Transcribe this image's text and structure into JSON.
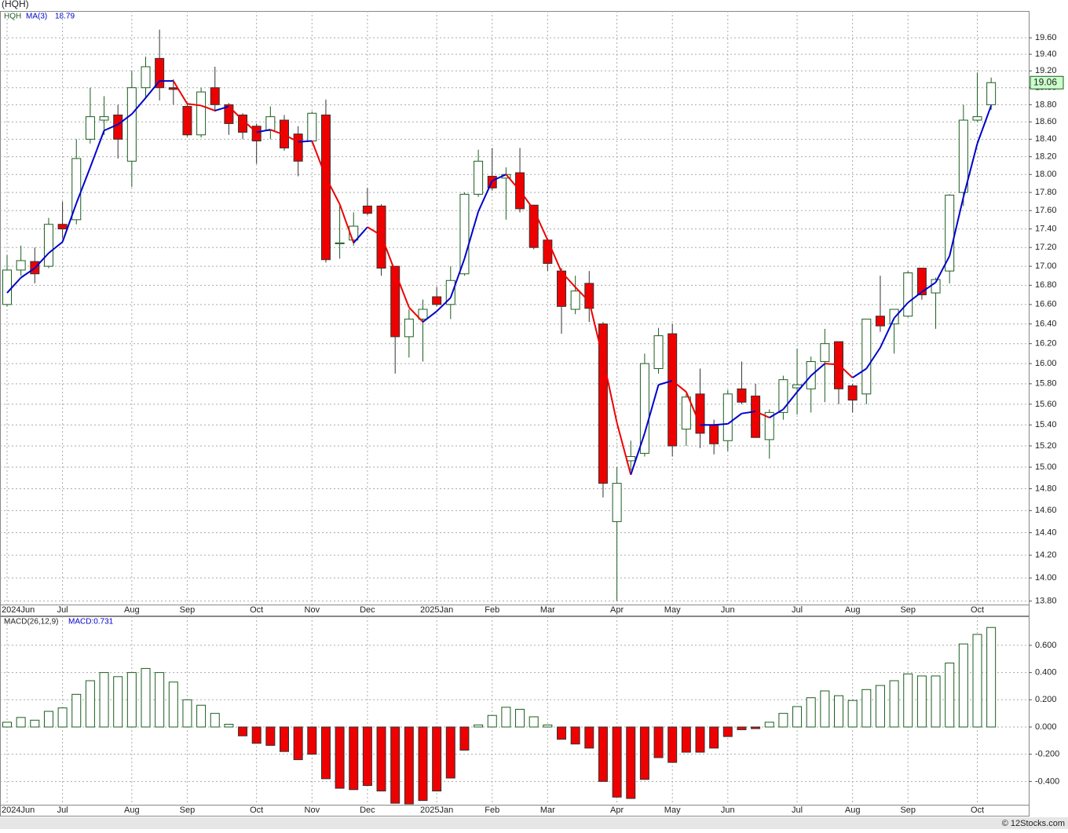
{
  "title": "(HQH)",
  "footer": "© 12Stocks.com",
  "chart_data": [
    {
      "type": "candlestick",
      "legend_name": "HQH",
      "categories": [
        "2024Jun",
        null,
        null,
        null,
        "Jul",
        null,
        null,
        null,
        null,
        "Aug",
        null,
        null,
        null,
        "Sep",
        null,
        null,
        null,
        null,
        "Oct",
        null,
        null,
        null,
        "Nov",
        null,
        null,
        null,
        "Dec",
        null,
        null,
        null,
        null,
        "2025Jan",
        null,
        null,
        null,
        "Feb",
        null,
        null,
        null,
        "Mar",
        null,
        null,
        null,
        null,
        "Apr",
        null,
        null,
        null,
        "May",
        null,
        null,
        null,
        "Jun",
        null,
        null,
        null,
        null,
        "Jul",
        null,
        null,
        null,
        "Aug",
        null,
        null,
        null,
        "Sep",
        null,
        null,
        null,
        null,
        "Oct",
        null
      ],
      "series": [
        {
          "name": "HQH",
          "up_color": "#ffffff",
          "up_stroke": "#1b5e20",
          "down_color": "#ee0000",
          "down_stroke": "#333333",
          "open": [
            16.6,
            16.96,
            17.05,
            17.0,
            17.45,
            17.5,
            18.4,
            18.62,
            18.68,
            18.15,
            19.0,
            19.35,
            19.0,
            18.78,
            18.45,
            19.0,
            18.8,
            18.68,
            18.55,
            18.5,
            18.62,
            18.46,
            18.38,
            18.68,
            17.24,
            17.28,
            17.65,
            17.65,
            17.0,
            16.27,
            16.45,
            16.68,
            16.6,
            16.92,
            17.78,
            17.98,
            17.96,
            18.02,
            17.66,
            17.28,
            16.95,
            16.55,
            16.82,
            16.4,
            14.5,
            15.06,
            15.13,
            15.95,
            16.3,
            15.36,
            15.7,
            15.4,
            15.25,
            15.75,
            15.68,
            15.26,
            15.52,
            15.76,
            15.75,
            16.02,
            16.22,
            15.78,
            15.7,
            16.48,
            16.4,
            16.48,
            16.98,
            16.72,
            16.95,
            17.8,
            18.62,
            18.8
          ],
          "high": [
            17.12,
            17.22,
            17.2,
            17.52,
            17.7,
            18.4,
            19.0,
            18.9,
            18.8,
            19.2,
            19.37,
            19.7,
            19.1,
            18.82,
            19.0,
            19.25,
            18.82,
            18.7,
            18.58,
            18.78,
            18.68,
            18.55,
            18.72,
            18.86,
            17.65,
            17.58,
            17.85,
            17.67,
            17.0,
            16.55,
            16.65,
            16.78,
            17.0,
            17.8,
            18.28,
            18.3,
            18.08,
            18.3,
            17.66,
            17.3,
            16.98,
            16.9,
            16.95,
            16.42,
            15.0,
            15.25,
            16.1,
            16.36,
            16.4,
            15.7,
            15.95,
            15.45,
            15.74,
            16.02,
            15.8,
            15.55,
            15.88,
            16.15,
            16.07,
            16.35,
            16.22,
            15.8,
            16.45,
            16.9,
            16.55,
            16.95,
            16.98,
            16.88,
            17.78,
            18.8,
            19.18,
            19.12
          ],
          "low": [
            16.58,
            16.9,
            16.82,
            16.98,
            17.3,
            17.45,
            18.35,
            18.45,
            18.18,
            17.86,
            18.87,
            18.85,
            18.8,
            18.43,
            18.42,
            18.72,
            18.45,
            18.4,
            18.12,
            18.4,
            18.27,
            17.98,
            18.35,
            17.04,
            17.08,
            17.22,
            17.55,
            16.9,
            15.9,
            16.06,
            16.02,
            16.58,
            16.45,
            16.9,
            17.75,
            17.82,
            17.5,
            17.58,
            17.18,
            16.95,
            16.3,
            16.5,
            16.42,
            14.72,
            13.8,
            14.97,
            15.1,
            15.9,
            15.1,
            15.2,
            15.18,
            15.12,
            15.15,
            15.6,
            15.28,
            15.08,
            15.45,
            15.5,
            15.52,
            15.62,
            15.6,
            15.52,
            15.6,
            16.32,
            16.1,
            16.47,
            16.65,
            16.35,
            16.82,
            17.65,
            18.6,
            18.74
          ],
          "close": [
            16.96,
            17.06,
            16.92,
            17.45,
            17.4,
            18.18,
            18.66,
            18.66,
            18.4,
            19.0,
            19.25,
            19.0,
            18.98,
            18.45,
            18.95,
            18.8,
            18.58,
            18.48,
            18.38,
            18.66,
            18.3,
            18.15,
            18.7,
            17.07,
            17.25,
            17.43,
            17.57,
            16.98,
            16.27,
            16.45,
            16.55,
            16.6,
            16.85,
            17.78,
            18.15,
            17.85,
            18.0,
            17.62,
            17.2,
            17.03,
            16.58,
            16.74,
            16.56,
            14.85,
            14.85,
            15.1,
            16.0,
            16.28,
            15.2,
            15.67,
            15.32,
            15.22,
            15.7,
            15.62,
            15.28,
            15.52,
            15.84,
            15.79,
            16.02,
            16.2,
            15.75,
            15.64,
            16.45,
            16.38,
            16.55,
            16.93,
            16.7,
            16.86,
            17.77,
            18.62,
            18.66,
            19.06
          ]
        },
        {
          "name": "MA(3)",
          "type": "line",
          "up_color": "#0000cc",
          "down_color": "#ee0000",
          "legend_value": 18.79,
          "values": [
            16.72,
            16.88,
            16.98,
            17.14,
            17.26,
            17.68,
            18.08,
            18.5,
            18.57,
            18.69,
            18.88,
            19.08,
            19.08,
            18.81,
            18.79,
            18.73,
            18.78,
            18.62,
            18.48,
            18.51,
            18.45,
            18.37,
            18.38,
            17.97,
            17.67,
            17.25,
            17.42,
            17.33,
            16.94,
            16.57,
            16.42,
            16.53,
            16.67,
            17.08,
            17.59,
            17.93,
            18.0,
            17.82,
            17.61,
            17.28,
            16.94,
            16.78,
            16.63,
            16.05,
            15.42,
            14.93,
            15.32,
            15.79,
            15.83,
            15.72,
            15.4,
            15.4,
            15.41,
            15.51,
            15.53,
            15.47,
            15.55,
            15.72,
            15.88,
            16.0,
            15.99,
            15.86,
            15.95,
            16.16,
            16.46,
            16.62,
            16.73,
            16.83,
            17.11,
            17.75,
            18.35,
            18.79
          ]
        }
      ],
      "ylim": [
        13.77,
        19.93
      ],
      "log_scale": true,
      "grid": true,
      "last_price_box_color": "#ccffcc",
      "yticks": [
        {
          "value": 13.8,
          "label": "13.80"
        },
        {
          "value": 14.0,
          "label": "14.00"
        },
        {
          "value": 14.2,
          "label": "14.20"
        },
        {
          "value": 14.4,
          "label": "14.40"
        },
        {
          "value": 14.6,
          "label": "14.60"
        },
        {
          "value": 14.8,
          "label": "14.80"
        },
        {
          "value": 15.0,
          "label": "15.00"
        },
        {
          "value": 15.2,
          "label": "15.20"
        },
        {
          "value": 15.4,
          "label": "15.40"
        },
        {
          "value": 15.6,
          "label": "15.60"
        },
        {
          "value": 15.8,
          "label": "15.80"
        },
        {
          "value": 16.0,
          "label": "16.00"
        },
        {
          "value": 16.2,
          "label": "16.20"
        },
        {
          "value": 16.4,
          "label": "16.40"
        },
        {
          "value": 16.6,
          "label": "16.60"
        },
        {
          "value": 16.8,
          "label": "16.80"
        },
        {
          "value": 17.0,
          "label": "17.00"
        },
        {
          "value": 17.2,
          "label": "17.20"
        },
        {
          "value": 17.4,
          "label": "17.40"
        },
        {
          "value": 17.6,
          "label": "17.60"
        },
        {
          "value": 17.8,
          "label": "17.80"
        },
        {
          "value": 18.0,
          "label": "18.00"
        },
        {
          "value": 18.2,
          "label": "18.20"
        },
        {
          "value": 18.4,
          "label": "18.40"
        },
        {
          "value": 18.6,
          "label": "18.60"
        },
        {
          "value": 18.8,
          "label": "18.80"
        },
        {
          "value": 19.0,
          "label": "19.00"
        },
        {
          "value": 19.2,
          "label": "19.20"
        },
        {
          "value": 19.4,
          "label": "19.40"
        },
        {
          "value": 19.6,
          "label": "19.60"
        }
      ]
    },
    {
      "type": "bar",
      "title": "MACD(26,12,9)",
      "legend": "MACD:0.731",
      "categories": [
        "2024Jun",
        null,
        null,
        null,
        "Jul",
        null,
        null,
        null,
        null,
        "Aug",
        null,
        null,
        null,
        "Sep",
        null,
        null,
        null,
        null,
        "Oct",
        null,
        null,
        null,
        "Nov",
        null,
        null,
        null,
        "Dec",
        null,
        null,
        null,
        null,
        "2025Jan",
        null,
        null,
        null,
        "Feb",
        null,
        null,
        null,
        "Mar",
        null,
        null,
        null,
        null,
        "Apr",
        null,
        null,
        null,
        "May",
        null,
        null,
        null,
        "Jun",
        null,
        null,
        null,
        null,
        "Jul",
        null,
        null,
        null,
        "Aug",
        null,
        null,
        null,
        "Sep",
        null,
        null,
        null,
        null,
        "Oct",
        null
      ],
      "values": [
        0.035,
        0.07,
        0.05,
        0.115,
        0.14,
        0.24,
        0.34,
        0.4,
        0.37,
        0.4,
        0.43,
        0.4,
        0.33,
        0.2,
        0.16,
        0.1,
        0.02,
        -0.065,
        -0.12,
        -0.135,
        -0.18,
        -0.24,
        -0.2,
        -0.38,
        -0.45,
        -0.46,
        -0.43,
        -0.47,
        -0.56,
        -0.565,
        -0.54,
        -0.47,
        -0.375,
        -0.17,
        0.015,
        0.085,
        0.145,
        0.13,
        0.075,
        0.015,
        -0.09,
        -0.125,
        -0.155,
        -0.4,
        -0.515,
        -0.525,
        -0.385,
        -0.225,
        -0.26,
        -0.185,
        -0.185,
        -0.155,
        -0.07,
        -0.02,
        -0.012,
        0.035,
        0.1,
        0.15,
        0.215,
        0.265,
        0.23,
        0.195,
        0.275,
        0.305,
        0.34,
        0.39,
        0.375,
        0.375,
        0.47,
        0.61,
        0.68,
        0.731
      ],
      "pos_color": "#ffffff",
      "pos_stroke": "#1b5e20",
      "neg_color": "#ee0000",
      "neg_stroke": "#333333",
      "ylim": [
        -0.571,
        0.813
      ],
      "grid": true,
      "yticks": [
        {
          "value": -0.4,
          "label": "-0.400"
        },
        {
          "value": -0.2,
          "label": "-0.200"
        },
        {
          "value": 0,
          "label": "0.000"
        },
        {
          "value": 0.2,
          "label": "0.200"
        },
        {
          "value": 0.4,
          "label": "0.400"
        },
        {
          "value": 0.6,
          "label": "0.600"
        }
      ]
    }
  ]
}
